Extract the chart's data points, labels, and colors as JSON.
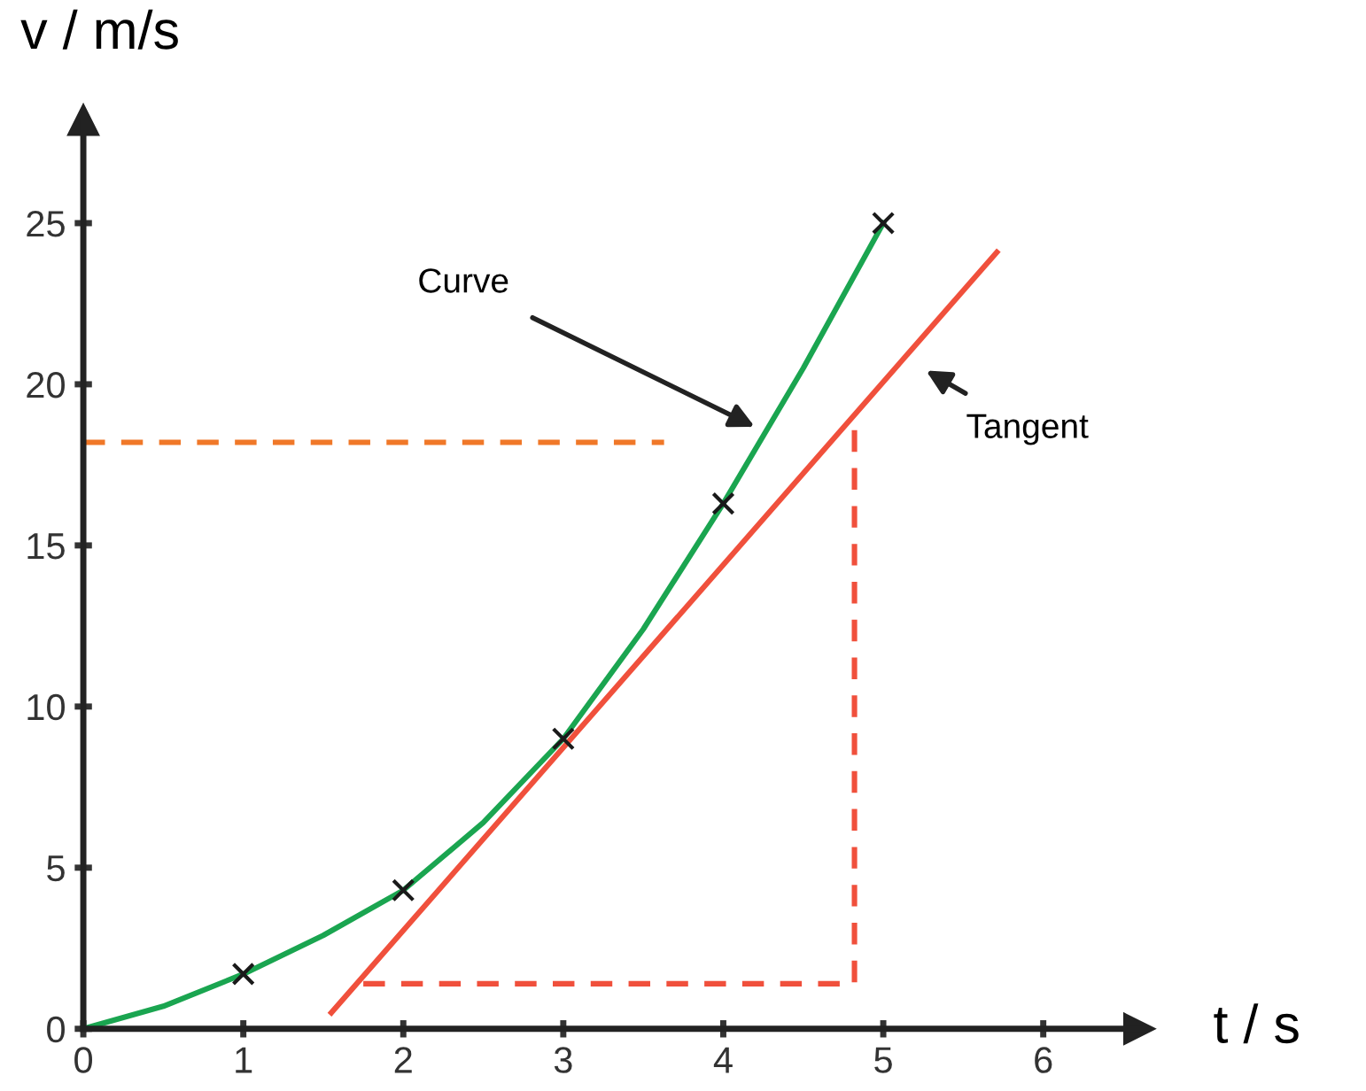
{
  "chart_data": {
    "type": "line",
    "xlabel": "t / s",
    "ylabel": "v / m/s",
    "xlim": [
      0,
      6.6
    ],
    "ylim": [
      0,
      28.2
    ],
    "xticks": [
      0,
      1,
      2,
      3,
      4,
      5,
      6
    ],
    "yticks": [
      0,
      5,
      10,
      15,
      20,
      25
    ],
    "grid": false,
    "legend": false,
    "series": [
      {
        "color": "#1aa550",
        "x": [
          0,
          0.5,
          1,
          1.5,
          2,
          2.5,
          3,
          3.5,
          4,
          4.5,
          5
        ],
        "values": [
          0,
          0.7,
          1.7,
          2.9,
          4.3,
          6.4,
          9.0,
          12.4,
          16.3,
          20.5,
          25
        ],
        "marker": "none",
        "line_style": "solid"
      },
      {
        "type": "scatter",
        "color": "#1a1a1a",
        "x": [
          1,
          2,
          3,
          4,
          5
        ],
        "values": [
          1.7,
          4.3,
          9.0,
          16.3,
          25
        ],
        "marker": "cross"
      },
      {
        "color": "#f0503c",
        "x": [
          1.55,
          5.71
        ],
        "values": [
          0.5,
          24.1
        ],
        "marker": "none",
        "line_style": "solid"
      },
      {
        "color": "#f07828",
        "x": [
          0,
          3.63
        ],
        "values": [
          18.2,
          18.2
        ],
        "marker": "none",
        "line_style": "dashed"
      },
      {
        "color": "#f0503c",
        "x": [
          1.75,
          4.82,
          4.82
        ],
        "values": [
          1.4,
          1.4,
          18.6
        ],
        "marker": "none",
        "line_style": "dashed"
      }
    ],
    "annotations": [
      "Curve",
      "Tangent"
    ]
  }
}
